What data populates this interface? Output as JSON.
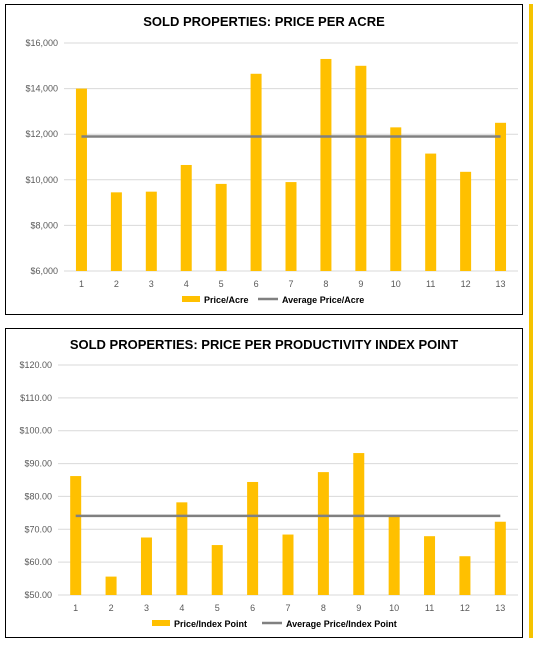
{
  "colors": {
    "bar": "#FFC000",
    "avg": "#808080",
    "accent": "#F5C300"
  },
  "chart_data": [
    {
      "type": "bar",
      "title": "SOLD PROPERTIES: PRICE PER ACRE",
      "categories": [
        "1",
        "2",
        "3",
        "4",
        "5",
        "6",
        "7",
        "8",
        "9",
        "10",
        "11",
        "12",
        "13"
      ],
      "series": [
        {
          "name": "Price/Acre",
          "type": "bar",
          "values": [
            14000,
            9450,
            9480,
            10650,
            9820,
            14650,
            9900,
            15300,
            15000,
            12300,
            11150,
            10350,
            12500
          ]
        },
        {
          "name": "Average Price/Acre",
          "type": "line",
          "values": [
            11900,
            11900,
            11900,
            11900,
            11900,
            11900,
            11900,
            11900,
            11900,
            11900,
            11900,
            11900,
            11900
          ]
        }
      ],
      "yticks": [
        "$6,000",
        "$8,000",
        "$10,000",
        "$12,000",
        "$14,000",
        "$16,000"
      ],
      "ylim": [
        6000,
        16000
      ],
      "legend": "bottom",
      "grid": true
    },
    {
      "type": "bar",
      "title": "SOLD PROPERTIES: PRICE PER PRODUCTIVITY INDEX POINT",
      "categories": [
        "1",
        "2",
        "3",
        "4",
        "5",
        "6",
        "7",
        "8",
        "9",
        "10",
        "11",
        "12",
        "13"
      ],
      "series": [
        {
          "name": "Price/Index Point",
          "type": "bar",
          "values": [
            86.2,
            55.6,
            67.5,
            78.2,
            65.2,
            84.4,
            68.4,
            87.4,
            93.2,
            74.0,
            67.9,
            61.8,
            72.3
          ]
        },
        {
          "name": "Average Price/Index Point",
          "type": "line",
          "values": [
            74.1,
            74.1,
            74.1,
            74.1,
            74.1,
            74.1,
            74.1,
            74.1,
            74.1,
            74.1,
            74.1,
            74.1,
            74.1
          ]
        }
      ],
      "yticks": [
        "$50.00",
        "$60.00",
        "$70.00",
        "$80.00",
        "$90.00",
        "$100.00",
        "$110.00",
        "$120.00"
      ],
      "ylim": [
        50,
        120
      ],
      "legend": "bottom",
      "grid": true
    }
  ]
}
